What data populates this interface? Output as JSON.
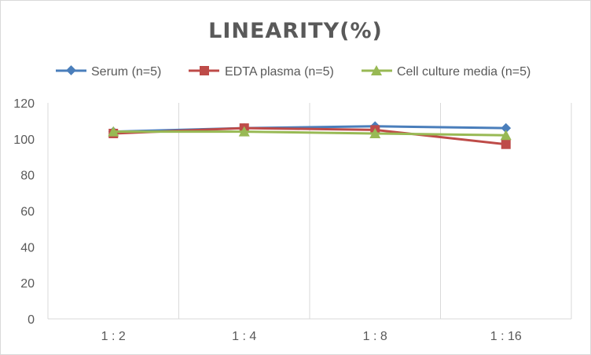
{
  "chart_data": {
    "type": "line",
    "title": "LINEARITY(%)",
    "xlabel": "",
    "ylabel": "",
    "categories": [
      "1:2",
      "1:4",
      "1:8",
      "1:16"
    ],
    "ylim": [
      0,
      120
    ],
    "yticks": [
      0,
      20,
      40,
      60,
      80,
      100,
      120
    ],
    "grid": "vertical",
    "legend": "top",
    "series": [
      {
        "name": "Serum (n=5)",
        "color": "#4a7ebb",
        "marker": "diamond",
        "values": [
          104,
          106,
          107,
          106
        ]
      },
      {
        "name": "EDTA plasma (n=5)",
        "color": "#be4b48",
        "marker": "square",
        "values": [
          103,
          106,
          105,
          97
        ]
      },
      {
        "name": "Cell culture media (n=5)",
        "color": "#98b954",
        "marker": "triangle",
        "values": [
          104,
          104,
          103,
          102
        ]
      }
    ]
  }
}
